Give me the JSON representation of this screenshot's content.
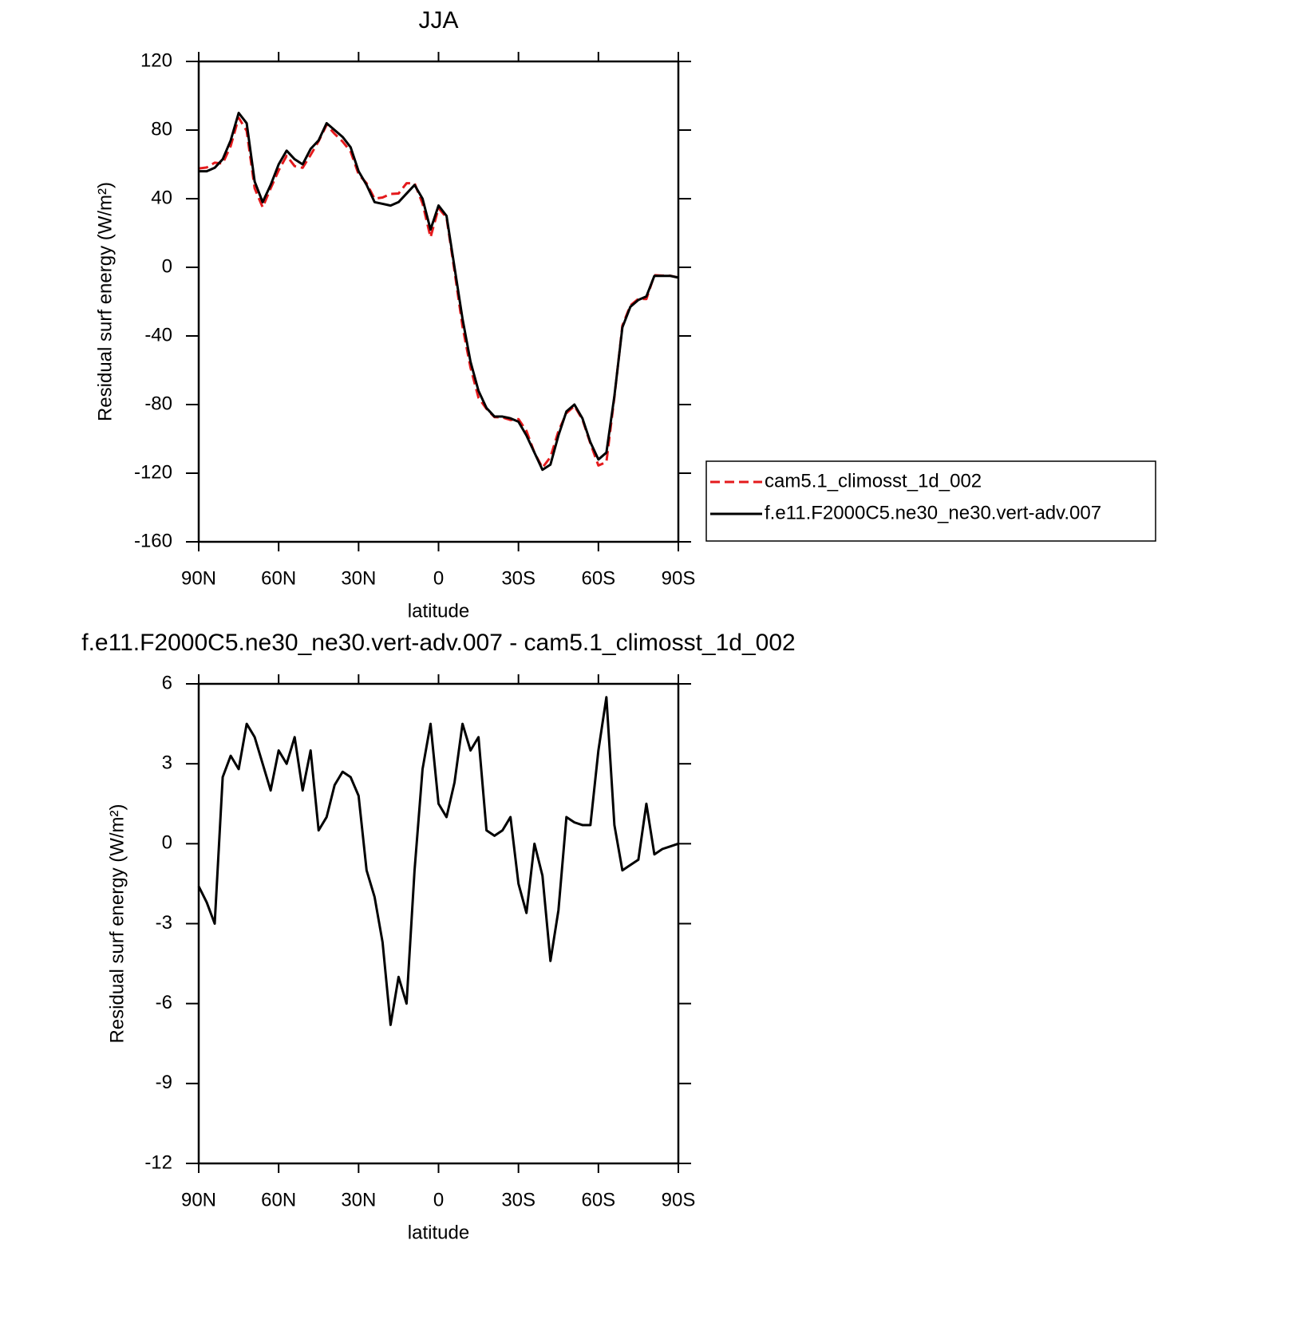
{
  "chart_data": [
    {
      "type": "line",
      "title": "JJA",
      "xlabel": "latitude",
      "ylabel": "Residual surf energy (W/m²)",
      "x": [
        90,
        87,
        84,
        81,
        78,
        75,
        72,
        69,
        66,
        63,
        60,
        57,
        54,
        51,
        48,
        45,
        42,
        39,
        36,
        33,
        30,
        27,
        24,
        21,
        18,
        15,
        12,
        9,
        6,
        3,
        0,
        -3,
        -6,
        -9,
        -12,
        -15,
        -18,
        -21,
        -24,
        -27,
        -30,
        -33,
        -36,
        -39,
        -42,
        -45,
        -48,
        -51,
        -54,
        -57,
        -60,
        -63,
        -66,
        -69,
        -72,
        -75,
        -78,
        -81,
        -84,
        -87,
        -90
      ],
      "series": [
        {
          "name": "cam5.1_climosst_1d_002",
          "color": "#e41a1c",
          "style": "dashed",
          "values": [
            57.6,
            58.2,
            61,
            60.5,
            70.7,
            87.2,
            79.5,
            46,
            35,
            46,
            56.5,
            65,
            59,
            58,
            65.5,
            73.5,
            83,
            77.8,
            73.3,
            67.5,
            54.2,
            49,
            40,
            40.7,
            42.8,
            43,
            49,
            49,
            37.2,
            17.5,
            34.5,
            29,
            -2.3,
            -34.5,
            -58.5,
            -76,
            -82.5,
            -87.3,
            -87.5,
            -89,
            -88.5,
            -95.4,
            -108,
            -116.8,
            -110.6,
            -95.5,
            -85,
            -80.8,
            -88.7,
            -102.7,
            -115.5,
            -113.5,
            -75.7,
            -34,
            -22.2,
            -18.4,
            -18.5,
            -4.6,
            -4.8,
            -4.9,
            -6
          ]
        },
        {
          "name": "f.e11.F2000C5.ne30_ne30.vert-adv.007",
          "color": "#000000",
          "style": "solid",
          "values": [
            56,
            56,
            58,
            63,
            74,
            90,
            84,
            50,
            38,
            48,
            60,
            68,
            63,
            60,
            69,
            74,
            84,
            80,
            76,
            70,
            56,
            48,
            38,
            37,
            36,
            38,
            43,
            48,
            40,
            22,
            36,
            30,
            0,
            -30,
            -55,
            -72,
            -82,
            -87,
            -87,
            -88,
            -90,
            -98,
            -108,
            -118,
            -115,
            -98,
            -84,
            -80,
            -88,
            -102,
            -112,
            -108,
            -75,
            -35,
            -23,
            -19,
            -17,
            -5,
            -5,
            -5,
            -6
          ]
        }
      ],
      "xlim": [
        90,
        -90
      ],
      "xticks": [
        {
          "value": 90,
          "label": "90N"
        },
        {
          "value": 60,
          "label": "60N"
        },
        {
          "value": 30,
          "label": "30N"
        },
        0,
        {
          "value": -30,
          "label": "30S"
        },
        {
          "value": -60,
          "label": "60S"
        },
        {
          "value": -90,
          "label": "90S"
        }
      ],
      "ylim": [
        -160,
        120
      ],
      "yticks": [
        -160,
        -120,
        -80,
        -40,
        0,
        40,
        80,
        120
      ],
      "legend": "right"
    },
    {
      "type": "line",
      "title": "f.e11.F2000C5.ne30_ne30.vert-adv.007 - cam5.1_climosst_1d_002",
      "xlabel": "latitude",
      "ylabel": "Residual surf energy (W/m²)",
      "x": [
        90,
        87,
        84,
        81,
        78,
        75,
        72,
        69,
        66,
        63,
        60,
        57,
        54,
        51,
        48,
        45,
        42,
        39,
        36,
        33,
        30,
        27,
        24,
        21,
        18,
        15,
        12,
        9,
        6,
        3,
        0,
        -3,
        -6,
        -9,
        -12,
        -15,
        -18,
        -21,
        -24,
        -27,
        -30,
        -33,
        -36,
        -39,
        -42,
        -45,
        -48,
        -51,
        -54,
        -57,
        -60,
        -63,
        -66,
        -69,
        -72,
        -75,
        -78,
        -81,
        -84,
        -87,
        -90
      ],
      "values": [
        -1.6,
        -2.2,
        -3,
        2.5,
        3.3,
        2.8,
        4.5,
        4,
        3,
        2,
        3.5,
        3,
        4,
        2,
        3.5,
        0.5,
        1,
        2.2,
        2.7,
        2.5,
        1.8,
        -1,
        -2,
        -3.7,
        -6.8,
        -5,
        -6,
        -1,
        2.8,
        4.5,
        1.5,
        1,
        2.3,
        4.5,
        3.5,
        4,
        0.5,
        0.3,
        0.5,
        1,
        -1.5,
        -2.6,
        0,
        -1.2,
        -4.4,
        -2.5,
        1,
        0.8,
        0.7,
        0.7,
        3.5,
        5.5,
        0.7,
        -1,
        -0.8,
        -0.6,
        1.5,
        -0.4,
        -0.2,
        -0.1,
        0
      ],
      "color": "#000000",
      "xlim": [
        90,
        -90
      ],
      "xticks": [
        {
          "value": 90,
          "label": "90N"
        },
        {
          "value": 60,
          "label": "60N"
        },
        {
          "value": 30,
          "label": "30N"
        },
        0,
        {
          "value": -30,
          "label": "30S"
        },
        {
          "value": -60,
          "label": "60S"
        },
        {
          "value": -90,
          "label": "90S"
        }
      ],
      "ylim": [
        -12,
        6
      ],
      "yticks": [
        -12,
        -9,
        -6,
        -3,
        0,
        3,
        6
      ]
    }
  ]
}
